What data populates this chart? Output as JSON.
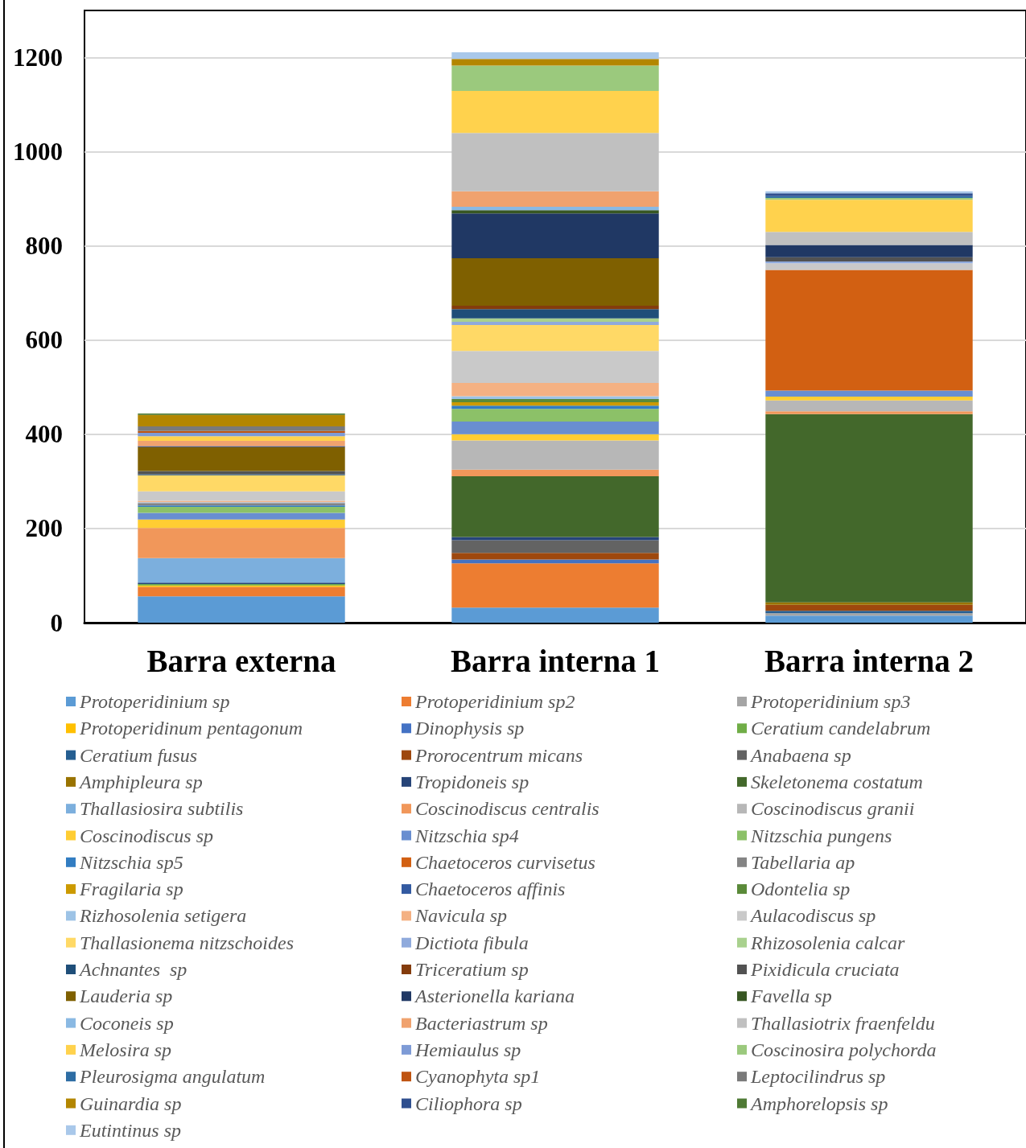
{
  "chart_data": {
    "type": "bar",
    "stacked": true,
    "categories": [
      "Barra externa",
      "Barra interna 1",
      "Barra interna 2"
    ],
    "ylim": [
      0,
      1300
    ],
    "yticks": [
      0,
      200,
      400,
      600,
      800,
      1000,
      1200
    ],
    "grid": "y",
    "legend": "bottom",
    "series": [
      {
        "name": "Protoperidinium sp",
        "color": "#5b9bd5",
        "values": [
          56,
          32,
          15
        ]
      },
      {
        "name": "Protoperidinium sp2",
        "color": "#ed7d31",
        "values": [
          20,
          94,
          null
        ]
      },
      {
        "name": "Protoperidinium sp3",
        "color": "#a5a5a5",
        "values": [
          null,
          null,
          5
        ]
      },
      {
        "name": "Protoperidinum pentagonum",
        "color": "#ffc000",
        "values": [
          3,
          null,
          null
        ]
      },
      {
        "name": "Dinophysis sp",
        "color": "#4472c4",
        "values": [
          null,
          8,
          null
        ]
      },
      {
        "name": "Ceratium candelabrum",
        "color": "#70ad47",
        "values": [
          3,
          null,
          null
        ]
      },
      {
        "name": "Ceratium fusus",
        "color": "#255e91",
        "values": [
          null,
          null,
          5
        ]
      },
      {
        "name": "Prorocentrum micans",
        "color": "#9e480e",
        "values": [
          null,
          14,
          13
        ]
      },
      {
        "name": "Anabaena sp",
        "color": "#636363",
        "values": [
          null,
          27,
          null
        ]
      },
      {
        "name": "Amphipleura sp",
        "color": "#997300",
        "values": [
          null,
          null,
          5
        ]
      },
      {
        "name": "Tropidoneis sp",
        "color": "#264478",
        "values": [
          3,
          7,
          null
        ]
      },
      {
        "name": "Skeletonema costatum",
        "color": "#43682b",
        "values": [
          null,
          129,
          400
        ]
      },
      {
        "name": "Thallasiosira subtilis",
        "color": "#7cafdd",
        "values": [
          52,
          null,
          null
        ]
      },
      {
        "name": "Coscinodiscus centralis",
        "color": "#f1975a",
        "values": [
          64,
          14,
          6
        ]
      },
      {
        "name": "Coscinodiscus granii",
        "color": "#b7b7b7",
        "values": [
          null,
          62,
          23
        ]
      },
      {
        "name": "Coscinodiscus sp",
        "color": "#ffcd33",
        "values": [
          18,
          13,
          8
        ]
      },
      {
        "name": "Nitzschia sp4",
        "color": "#698ed0",
        "values": [
          14,
          27,
          13
        ]
      },
      {
        "name": "Nitzschia pungens",
        "color": "#8cc168",
        "values": [
          13,
          27,
          null
        ]
      },
      {
        "name": "Nitzschia sp5",
        "color": "#327dc2",
        "values": [
          3,
          7,
          null
        ]
      },
      {
        "name": "Chaetoceros curvisetus",
        "color": "#d26012",
        "values": [
          null,
          null,
          256
        ]
      },
      {
        "name": "Tabellaria ap",
        "color": "#848484",
        "values": [
          5,
          null,
          null
        ]
      },
      {
        "name": "Fragilaria sp",
        "color": "#cc9a00",
        "values": [
          null,
          7,
          null
        ]
      },
      {
        "name": "Chaetoceros affinis",
        "color": "#335aa1",
        "values": [
          null,
          null,
          null
        ]
      },
      {
        "name": "Odontelia sp",
        "color": "#5a8a39",
        "values": [
          null,
          7,
          null
        ]
      },
      {
        "name": "Rizhosolenia setigera",
        "color": "#9dc3e6",
        "values": [
          2,
          6,
          null
        ]
      },
      {
        "name": "Navicula sp",
        "color": "#f4b183",
        "values": [
          3,
          28,
          null
        ]
      },
      {
        "name": "Aulacodiscus sp",
        "color": "#c9c9c9",
        "values": [
          20,
          68,
          14
        ]
      },
      {
        "name": "Thallasionema nitzschoides",
        "color": "#ffd966",
        "values": [
          34,
          55,
          null
        ]
      },
      {
        "name": "Dictiota fibula",
        "color": "#8faadc",
        "values": [
          null,
          7,
          4
        ]
      },
      {
        "name": "Rhizosolenia calcar",
        "color": "#a9d18e",
        "values": [
          null,
          7,
          null
        ]
      },
      {
        "name": "Achnantes  sp",
        "color": "#1f4e79",
        "values": [
          2,
          20,
          null
        ]
      },
      {
        "name": "Triceratium sp",
        "color": "#843c0c",
        "values": [
          null,
          7,
          null
        ]
      },
      {
        "name": "Pixidicula cruciata",
        "color": "#525252",
        "values": [
          7,
          null,
          9
        ]
      },
      {
        "name": "Lauderia sp",
        "color": "#7f6000",
        "values": [
          51,
          101,
          null
        ]
      },
      {
        "name": "Asterionella kariana",
        "color": "#203864",
        "values": [
          2,
          95,
          26
        ]
      },
      {
        "name": "Favella sp",
        "color": "#385723",
        "values": [
          null,
          7,
          null
        ]
      },
      {
        "name": "Coconeis sp",
        "color": "#8ab9e3",
        "values": [
          null,
          7,
          null
        ]
      },
      {
        "name": "Bacteriastrum sp",
        "color": "#f0a26e",
        "values": [
          11,
          33,
          null
        ]
      },
      {
        "name": "Thallasiotrix fraenfeldu",
        "color": "#c0c0c0",
        "values": [
          null,
          124,
          28
        ]
      },
      {
        "name": "Melosira sp",
        "color": "#ffd24d",
        "values": [
          10,
          89,
          68
        ]
      },
      {
        "name": "Hemiaulus sp",
        "color": "#7e9bd6",
        "values": [
          7,
          null,
          null
        ]
      },
      {
        "name": "Coscinosira polychorda",
        "color": "#9bc97d",
        "values": [
          null,
          54,
          4
        ]
      },
      {
        "name": "Pleurosigma angulatum",
        "color": "#2e6da4",
        "values": [
          null,
          null,
          4
        ]
      },
      {
        "name": "Cyanophyta sp1",
        "color": "#bf5411",
        "values": [
          4,
          null,
          null
        ]
      },
      {
        "name": "Leptocilindrus sp",
        "color": "#7a7a7a",
        "values": [
          10,
          null,
          null
        ]
      },
      {
        "name": "Guinardia sp",
        "color": "#b38600",
        "values": [
          24,
          14,
          null
        ]
      },
      {
        "name": "Ciliophora sp",
        "color": "#2f4f8f",
        "values": [
          null,
          null,
          6
        ]
      },
      {
        "name": "Amphorelopsis sp",
        "color": "#4f7a35",
        "values": [
          3,
          null,
          null
        ]
      },
      {
        "name": "Eutintinus sp",
        "color": "#a9c8ea",
        "values": [
          null,
          14,
          4
        ]
      }
    ]
  }
}
